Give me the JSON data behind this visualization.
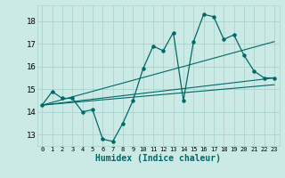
{
  "title": "",
  "xlabel": "Humidex (Indice chaleur)",
  "ylabel": "",
  "bg_color": "#cceae5",
  "grid_color": "#aad4ce",
  "line_color": "#006868",
  "xlim": [
    -0.5,
    23.5
  ],
  "ylim": [
    12.5,
    18.7
  ],
  "yticks": [
    13,
    14,
    15,
    16,
    17,
    18
  ],
  "xticks": [
    0,
    1,
    2,
    3,
    4,
    5,
    6,
    7,
    8,
    9,
    10,
    11,
    12,
    13,
    14,
    15,
    16,
    17,
    18,
    19,
    20,
    21,
    22,
    23
  ],
  "series": [
    {
      "x": [
        0,
        1,
        2,
        3,
        4,
        5,
        6,
        7,
        8,
        9,
        10,
        11,
        12,
        13,
        14,
        15,
        16,
        17,
        18,
        19,
        20,
        21,
        22,
        23
      ],
      "y": [
        14.3,
        14.9,
        14.6,
        14.6,
        14.0,
        14.1,
        12.8,
        12.7,
        13.5,
        14.5,
        15.9,
        16.9,
        16.7,
        17.5,
        14.5,
        17.1,
        18.3,
        18.2,
        17.2,
        17.4,
        16.5,
        15.8,
        15.5,
        15.5
      ]
    },
    {
      "x": [
        0,
        23
      ],
      "y": [
        14.3,
        17.1
      ]
    },
    {
      "x": [
        0,
        23
      ],
      "y": [
        14.3,
        15.5
      ]
    },
    {
      "x": [
        0,
        23
      ],
      "y": [
        14.3,
        15.2
      ]
    }
  ]
}
